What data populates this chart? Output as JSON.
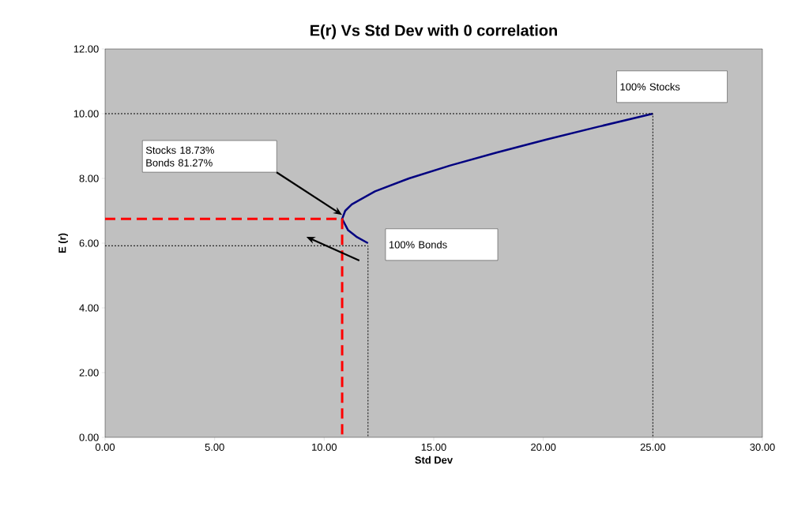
{
  "chart_data": {
    "type": "line",
    "title": "E(r) Vs Std Dev with 0 correlation",
    "xlabel": "Std Dev",
    "ylabel": "E (r)",
    "xlim": [
      0,
      30
    ],
    "ylim": [
      0,
      12
    ],
    "xticks": [
      {
        "value": 0,
        "label": "0.00"
      },
      {
        "value": 5,
        "label": "5.00"
      },
      {
        "value": 10,
        "label": "10.00"
      },
      {
        "value": 15,
        "label": "15.00"
      },
      {
        "value": 20,
        "label": "20.00"
      },
      {
        "value": 25,
        "label": "25.00"
      },
      {
        "value": 30,
        "label": "30.00"
      }
    ],
    "yticks": [
      {
        "value": 0,
        "label": "0.00"
      },
      {
        "value": 2,
        "label": "2.00"
      },
      {
        "value": 4,
        "label": "4.00"
      },
      {
        "value": 6,
        "label": "6.00"
      },
      {
        "value": 8,
        "label": "8.00"
      },
      {
        "value": 10,
        "label": "10.00"
      },
      {
        "value": 12,
        "label": "12.00"
      }
    ],
    "series": [
      {
        "color": "#000080",
        "line_style": "solid",
        "x": [
          12.0,
          11.47,
          11.09,
          10.82,
          10.96,
          11.26,
          12.32,
          13.87,
          15.75,
          17.87,
          20.14,
          22.53,
          25.0
        ],
        "values": [
          6.0,
          6.2,
          6.4,
          6.75,
          7.0,
          7.2,
          7.6,
          8.0,
          8.4,
          8.8,
          9.2,
          9.6,
          10.0
        ]
      },
      {
        "color": "#ff0000",
        "line_style": "dashed",
        "x": [
          0,
          10.82,
          10.82
        ],
        "values": [
          6.75,
          6.75,
          0
        ]
      },
      {
        "color": "#000000",
        "line_style": "dotted",
        "x": [
          0,
          12.0,
          12.0
        ],
        "values": [
          5.92,
          5.92,
          0
        ]
      },
      {
        "color": "#000000",
        "line_style": "dotted",
        "x": [
          0,
          25.0,
          25.0
        ],
        "values": [
          10.0,
          10.0,
          0
        ]
      }
    ],
    "annotations": [
      "Stocks 18.73%",
      "Bonds 81.27%",
      {
        "text": "100% Bonds",
        "x": 12.0,
        "y": 6.0
      },
      {
        "text": "100% Stocks",
        "x": 25.0,
        "y": 10.0
      }
    ]
  }
}
